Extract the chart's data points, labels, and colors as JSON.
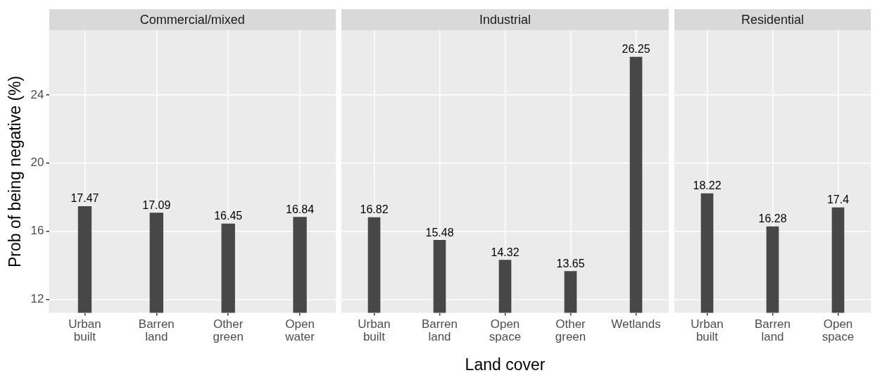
{
  "chart_data": [
    {
      "type": "bar",
      "title": "Commercial/mixed",
      "ylabel": "Prob of being negative (%)",
      "categories": [
        "Urban built",
        "Barren land",
        "Other green",
        "Open water"
      ],
      "values": [
        17.47,
        17.09,
        16.45,
        16.84
      ],
      "color": "#474747",
      "ylim": [
        11.2,
        27.8
      ],
      "yticks": [
        12,
        16,
        20,
        24
      ],
      "grid": true,
      "data_labels": true
    },
    {
      "type": "bar",
      "title": "Industrial",
      "xlabel": "Land cover",
      "categories": [
        "Urban built",
        "Barren land",
        "Open space",
        "Other green",
        "Wetlands"
      ],
      "values": [
        16.82,
        15.48,
        14.32,
        13.65,
        26.25
      ],
      "color": "#474747",
      "ylim": [
        11.2,
        27.8
      ],
      "yticks": [
        12,
        16,
        20,
        24
      ],
      "grid": true,
      "data_labels": true,
      "tick_labels": "x"
    },
    {
      "type": "bar",
      "title": "Residential",
      "categories": [
        "Urban built",
        "Barren land",
        "Open space"
      ],
      "values": [
        18.22,
        16.28,
        17.4
      ],
      "color": "#474747",
      "ylim": [
        11.2,
        27.8
      ],
      "yticks": [
        12,
        16,
        20,
        24
      ],
      "grid": true,
      "data_labels": true,
      "tick_labels": "x"
    }
  ]
}
